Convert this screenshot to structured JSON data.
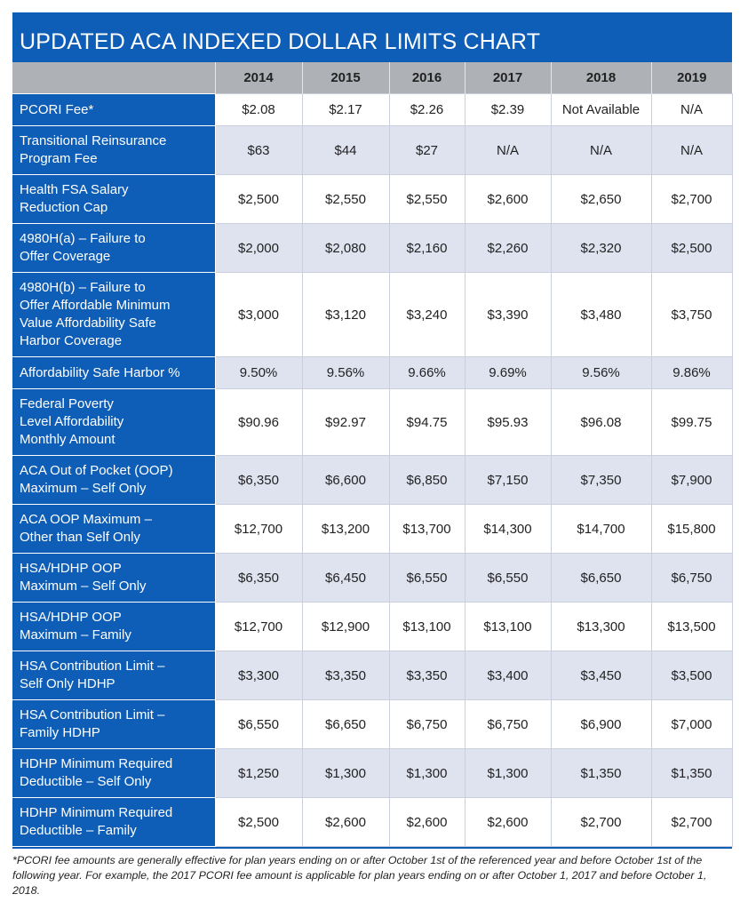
{
  "title": "UPDATED ACA INDEXED DOLLAR LIMITS CHART",
  "table": {
    "columns": [
      "2014",
      "2015",
      "2016",
      "2017",
      "2018",
      "2019"
    ],
    "rows": [
      {
        "label": [
          "PCORI Fee*"
        ],
        "values": [
          "$2.08",
          "$2.17",
          "$2.26",
          "$2.39",
          "Not Available",
          "N/A"
        ]
      },
      {
        "label": [
          "Transitional Reinsurance",
          "Program Fee"
        ],
        "values": [
          "$63",
          "$44",
          "$27",
          "N/A",
          "N/A",
          "N/A"
        ]
      },
      {
        "label": [
          "Health FSA Salary",
          "Reduction Cap"
        ],
        "values": [
          "$2,500",
          "$2,550",
          "$2,550",
          "$2,600",
          "$2,650",
          "$2,700"
        ]
      },
      {
        "label": [
          "4980H(a) – Failure to",
          "Offer Coverage"
        ],
        "values": [
          "$2,000",
          "$2,080",
          "$2,160",
          "$2,260",
          "$2,320",
          "$2,500"
        ]
      },
      {
        "label": [
          "4980H(b) – Failure to",
          "Offer Affordable Minimum",
          "Value Affordability Safe",
          "Harbor Coverage"
        ],
        "values": [
          "$3,000",
          "$3,120",
          "$3,240",
          "$3,390",
          "$3,480",
          "$3,750"
        ]
      },
      {
        "label": [
          "Affordability Safe Harbor %"
        ],
        "values": [
          "9.50%",
          "9.56%",
          "9.66%",
          "9.69%",
          "9.56%",
          "9.86%"
        ]
      },
      {
        "label": [
          "Federal Poverty",
          "Level Affordability",
          "Monthly Amount"
        ],
        "values": [
          "$90.96",
          "$92.97",
          "$94.75",
          "$95.93",
          "$96.08",
          "$99.75"
        ]
      },
      {
        "label": [
          "ACA Out of Pocket (OOP)",
          "Maximum – Self Only"
        ],
        "values": [
          "$6,350",
          "$6,600",
          "$6,850",
          "$7,150",
          "$7,350",
          "$7,900"
        ]
      },
      {
        "label": [
          "ACA OOP Maximum –",
          "Other than Self Only"
        ],
        "values": [
          "$12,700",
          "$13,200",
          "$13,700",
          "$14,300",
          "$14,700",
          "$15,800"
        ]
      },
      {
        "label": [
          "HSA/HDHP OOP",
          "Maximum – Self Only"
        ],
        "values": [
          "$6,350",
          "$6,450",
          "$6,550",
          "$6,550",
          "$6,650",
          "$6,750"
        ]
      },
      {
        "label": [
          "HSA/HDHP OOP",
          "Maximum – Family"
        ],
        "values": [
          "$12,700",
          "$12,900",
          "$13,100",
          "$13,100",
          "$13,300",
          "$13,500"
        ]
      },
      {
        "label": [
          "HSA Contribution Limit –",
          "Self Only HDHP"
        ],
        "values": [
          "$3,300",
          "$3,350",
          "$3,350",
          "$3,400",
          "$3,450",
          "$3,500"
        ]
      },
      {
        "label": [
          "HSA Contribution Limit –",
          "Family HDHP"
        ],
        "values": [
          "$6,550",
          "$6,650",
          "$6,750",
          "$6,750",
          "$6,900",
          "$7,000"
        ]
      },
      {
        "label": [
          "HDHP Minimum Required",
          "Deductible – Self Only"
        ],
        "values": [
          "$1,250",
          "$1,300",
          "$1,300",
          "$1,300",
          "$1,350",
          "$1,350"
        ]
      },
      {
        "label": [
          "HDHP Minimum Required",
          "Deductible – Family"
        ],
        "values": [
          "$2,500",
          "$2,600",
          "$2,600",
          "$2,600",
          "$2,700",
          "$2,700"
        ]
      }
    ]
  },
  "footnote": "*PCORI fee amounts are generally effective for plan years ending on or after October 1st of the referenced year and before October 1st of the following year. For example, the 2017 PCORI fee amount is applicable for plan years ending on or after October 1, 2017 and before October 1, 2018."
}
